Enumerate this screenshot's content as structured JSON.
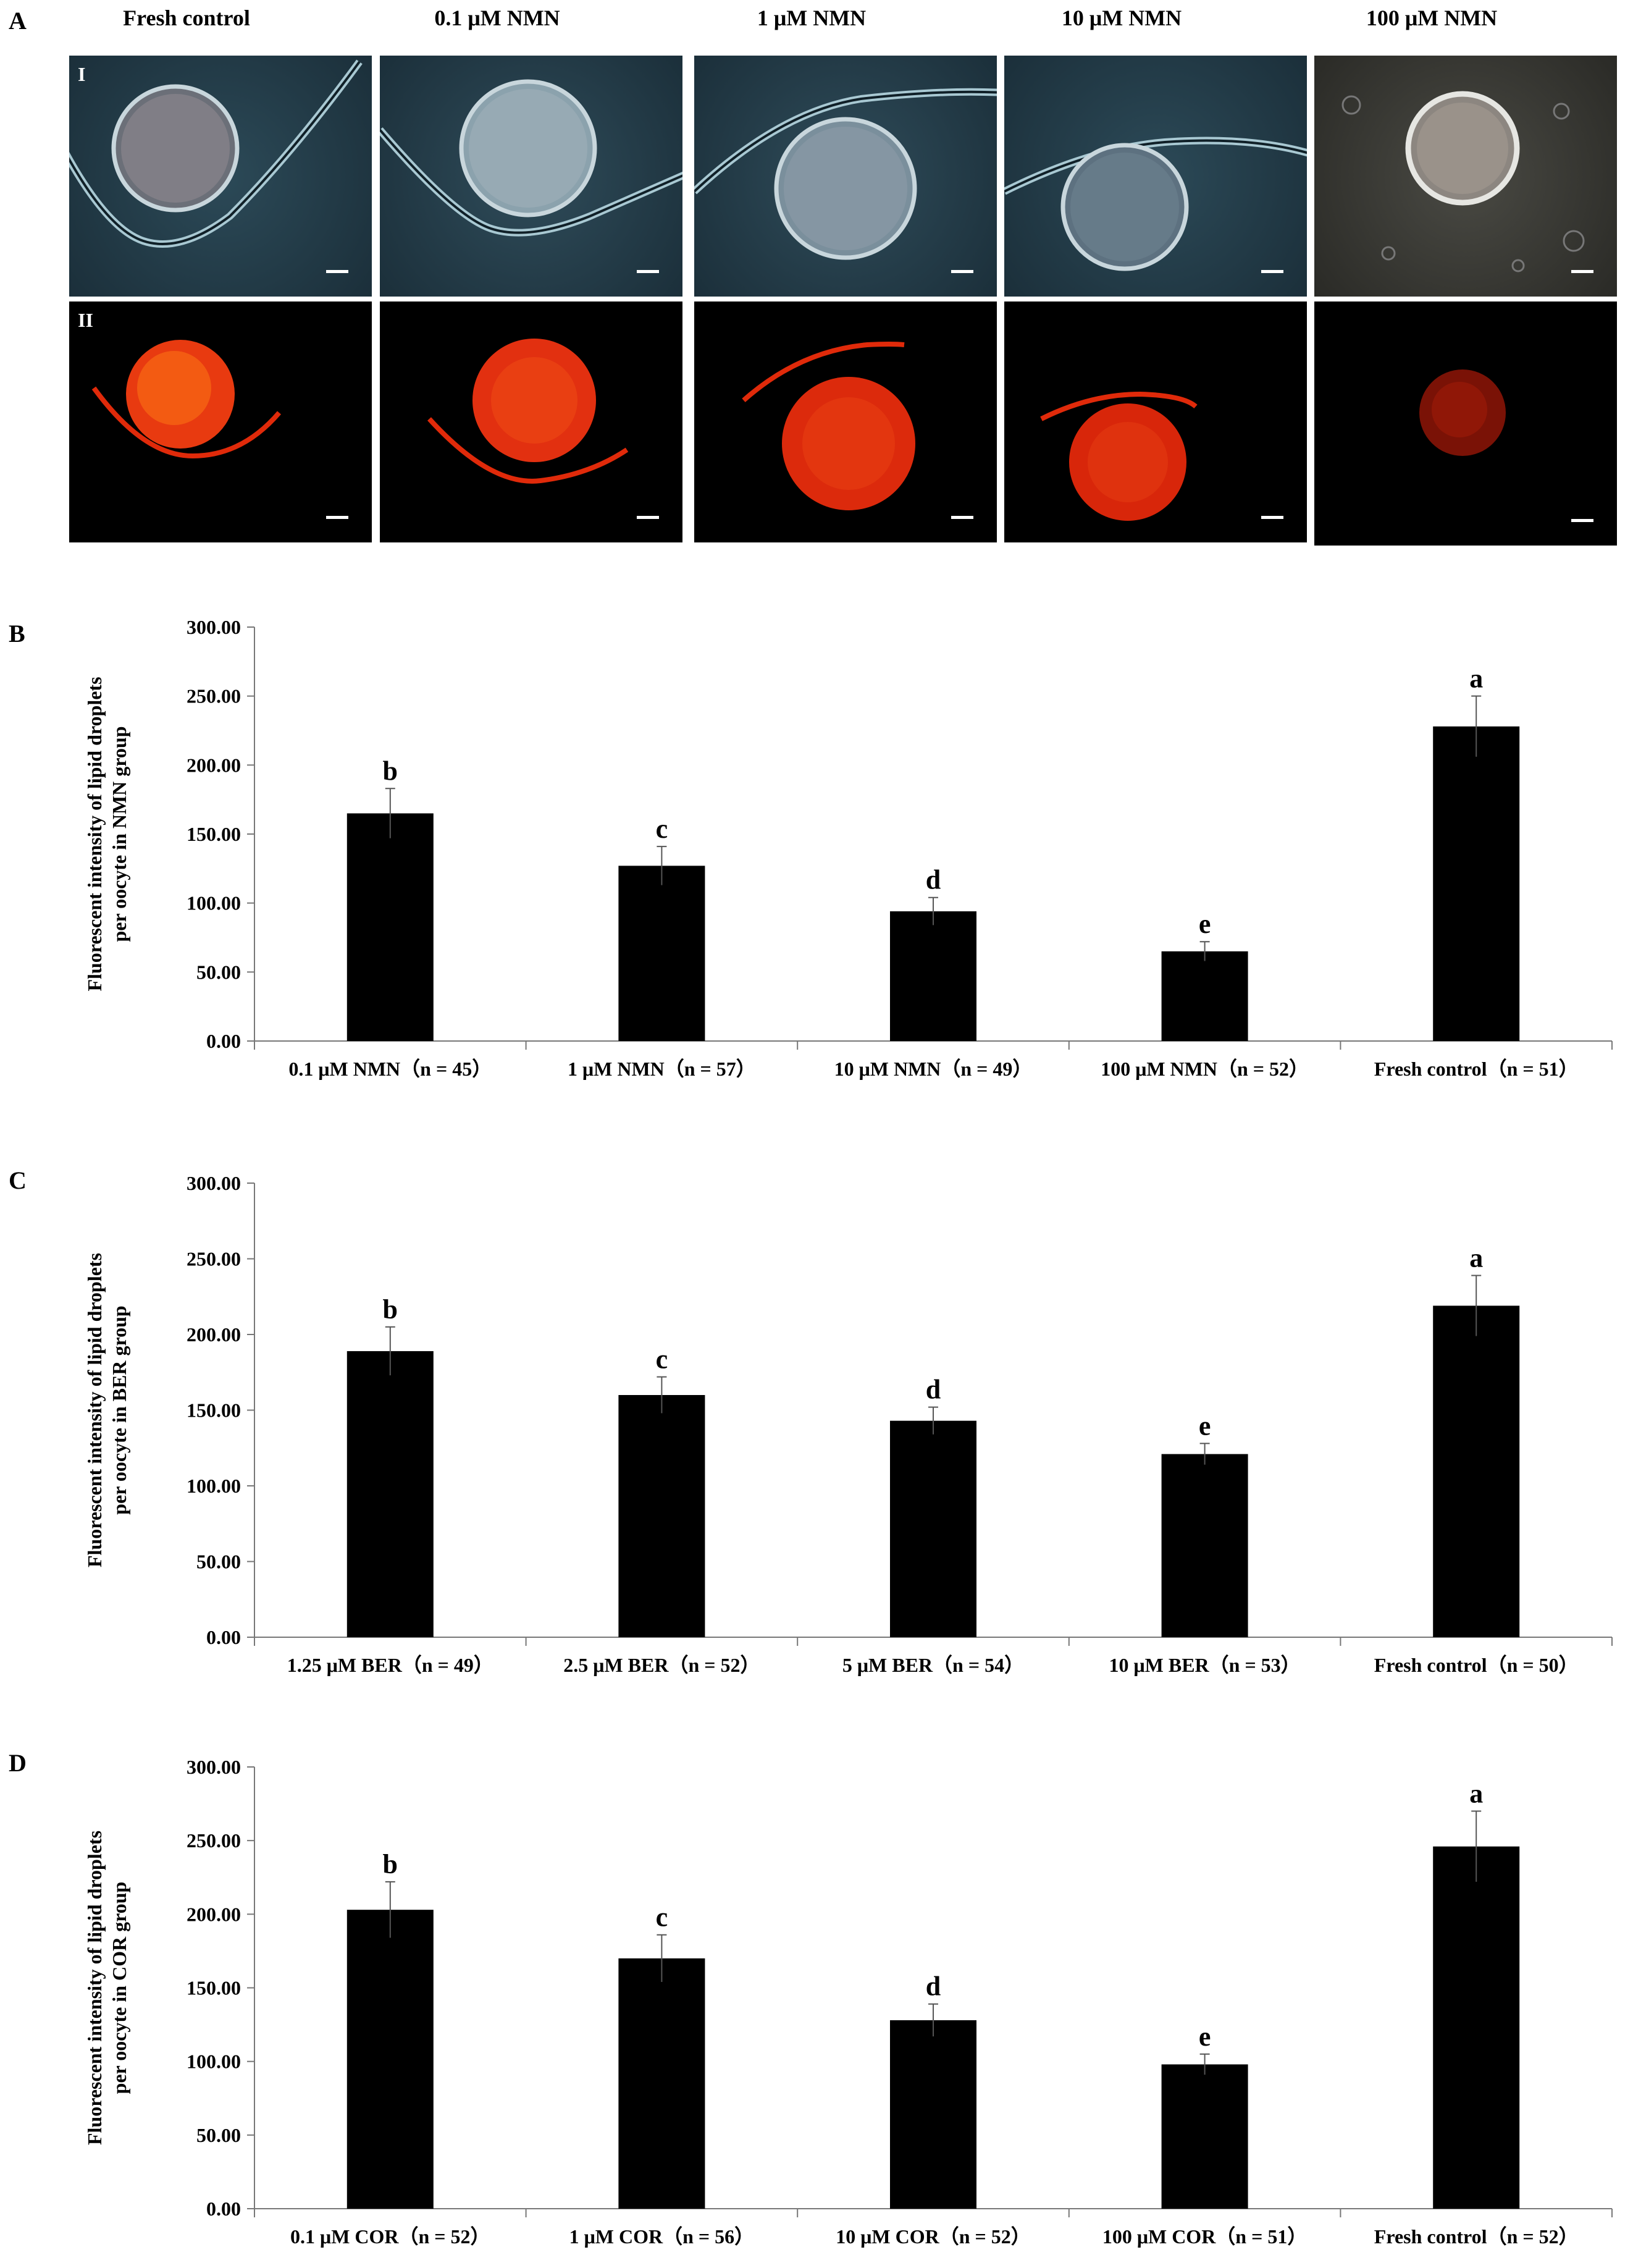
{
  "panels": {
    "A": "A",
    "B": "B",
    "C": "C",
    "D": "D"
  },
  "micrographs": {
    "columns": [
      "Fresh control",
      "0.1 μM NMN",
      "1 μM NMN",
      "10 μM NMN",
      "100 μM NMN"
    ],
    "rows": [
      "I",
      "II"
    ]
  },
  "chart_data": [
    {
      "type": "bar",
      "ylabel": "Fluorescent intensity of lipid droplets per oocyte in NMN group",
      "ylabel_lines": [
        "Fluorescent intensity of lipid droplets",
        "per oocyte in NMN group"
      ],
      "categories": [
        "0.1 μM NMN（n = 45）",
        "1 μM NMN（n = 57）",
        "10 μM NMN（n = 49）",
        "100 μM NMN（n = 52）",
        "Fresh control（n = 51）"
      ],
      "values": [
        165,
        127,
        94,
        65,
        228
      ],
      "errors": [
        18,
        14,
        10,
        7,
        22
      ],
      "letters": [
        "b",
        "c",
        "d",
        "e",
        "a"
      ],
      "ylim": [
        0,
        300
      ],
      "ticks": [
        "0.00",
        "50.00",
        "100.00",
        "150.00",
        "200.00",
        "250.00",
        "300.00"
      ]
    },
    {
      "type": "bar",
      "ylabel": "Fluorescent intensity of lipid droplets per oocyte in BER group",
      "ylabel_lines": [
        "Fluorescent intensity of lipid droplets",
        "per oocyte in BER group"
      ],
      "categories": [
        "1.25 μM  BER（n = 49）",
        "2.5 μM  BER（n = 52）",
        "5 μM  BER（n = 54）",
        "10 μM  BER（n = 53）",
        "Fresh control（n = 50）"
      ],
      "values": [
        189,
        160,
        143,
        121,
        219
      ],
      "errors": [
        16,
        12,
        9,
        7,
        20
      ],
      "letters": [
        "b",
        "c",
        "d",
        "e",
        "a"
      ],
      "ylim": [
        0,
        300
      ],
      "ticks": [
        "0.00",
        "50.00",
        "100.00",
        "150.00",
        "200.00",
        "250.00",
        "300.00"
      ]
    },
    {
      "type": "bar",
      "ylabel": "Fluorescent intensity of lipid droplets per oocyte in COR group",
      "ylabel_lines": [
        "Fluorescent intensity of lipid droplets",
        "per oocyte in COR group"
      ],
      "categories": [
        "0.1 μM COR（n = 52）",
        "1 μM COR（n = 56）",
        "10 μM COR（n = 52）",
        "100 μM COR（n = 51）",
        "Fresh control（n = 52）"
      ],
      "values": [
        203,
        170,
        128,
        98,
        246
      ],
      "errors": [
        19,
        16,
        11,
        7,
        24
      ],
      "letters": [
        "b",
        "c",
        "d",
        "e",
        "a"
      ],
      "ylim": [
        0,
        300
      ],
      "ticks": [
        "0.00",
        "50.00",
        "100.00",
        "150.00",
        "200.00",
        "250.00",
        "300.00"
      ]
    }
  ]
}
